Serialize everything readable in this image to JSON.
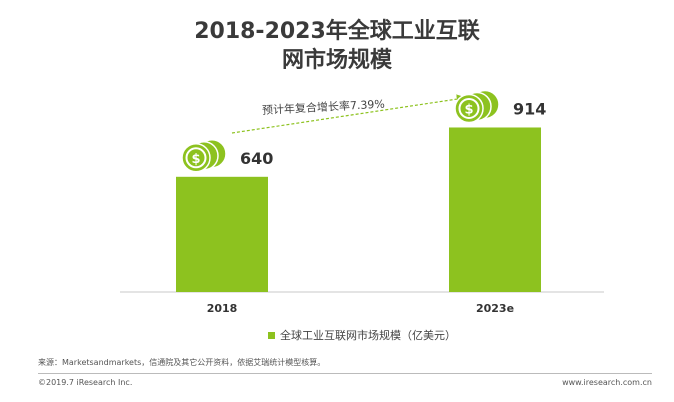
{
  "title_line1": "2018-2023年全球工业互联",
  "title_line2": "网市场规模",
  "cagr_text": "预计年复合增长率7.39%",
  "chart_data": {
    "type": "bar",
    "categories": [
      "2018",
      "2023e"
    ],
    "series": [
      {
        "name": "全球工业互联网市场规模（亿美元）",
        "values": [
          640,
          914
        ]
      }
    ],
    "data_labels": [
      "640",
      "914"
    ],
    "ylim": [
      0,
      1200
    ],
    "grid": false,
    "legend_position": "bottom",
    "bar_color": "#8dc21f",
    "icon_color": "#8dc21f"
  },
  "source": "来源：Marketsandmarkets，信通院及其它公开资料，依据艾瑞统计模型核算。",
  "footer_left": "©2019.7 iResearch Inc.",
  "footer_right": "www.iresearch.com.cn"
}
